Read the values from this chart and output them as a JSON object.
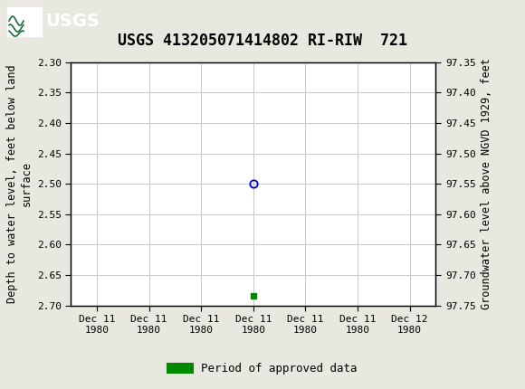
{
  "title": "USGS 413205071414802 RI-RIW  721",
  "ylabel_left": "Depth to water level, feet below land\nsurface",
  "ylabel_right": "Groundwater level above NGVD 1929, feet",
  "ylim_left": [
    2.3,
    2.7
  ],
  "ylim_right_top": 97.75,
  "ylim_right_bottom": 97.35,
  "yticks_left": [
    2.3,
    2.35,
    2.4,
    2.45,
    2.5,
    2.55,
    2.6,
    2.65,
    2.7
  ],
  "yticks_right": [
    97.75,
    97.7,
    97.65,
    97.6,
    97.55,
    97.5,
    97.45,
    97.4,
    97.35
  ],
  "xtick_labels": [
    "Dec 11\n1980",
    "Dec 11\n1980",
    "Dec 11\n1980",
    "Dec 11\n1980",
    "Dec 11\n1980",
    "Dec 11\n1980",
    "Dec 12\n1980"
  ],
  "xtick_positions": [
    0,
    1,
    2,
    3,
    4,
    5,
    6
  ],
  "xlim": [
    -0.5,
    6.5
  ],
  "data_point_x": 3,
  "data_point_y": 2.5,
  "approved_x": 3,
  "approved_y": 2.685,
  "header_color": "#1b6c3c",
  "circle_color": "#0000cc",
  "approved_color": "#008800",
  "grid_color": "#c8c8c8",
  "plot_bg_color": "#ffffff",
  "fig_bg_color": "#e8e8e0",
  "title_fontsize": 12,
  "axis_label_fontsize": 8.5,
  "tick_fontsize": 8,
  "legend_fontsize": 9
}
